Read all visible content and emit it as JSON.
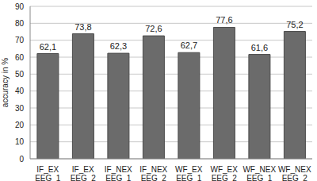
{
  "chart_data": {
    "type": "bar",
    "y_label": "accuracy in %",
    "categories": [
      "IF_EX EEG_1",
      "IF_EX EEG_2",
      "IF_NEX EEG_1",
      "IF_NEX EEG_2",
      "WF_EX EEG_1",
      "WF_EX EEG_2",
      "WF_NEX EEG_1",
      "WF_NEX EEG_2"
    ],
    "values": [
      62.1,
      73.8,
      62.3,
      72.6,
      62.7,
      77.6,
      61.6,
      75.2
    ],
    "value_labels": [
      "62,1",
      "73,8",
      "62,3",
      "72,6",
      "62,7",
      "77,6",
      "61,6",
      "75,2"
    ],
    "color": "#6b6b6b",
    "ylim": [
      0,
      90
    ],
    "yticks": [
      0,
      10,
      20,
      30,
      40,
      50,
      60,
      70,
      80,
      90
    ],
    "grid": true,
    "data_labels": true
  }
}
